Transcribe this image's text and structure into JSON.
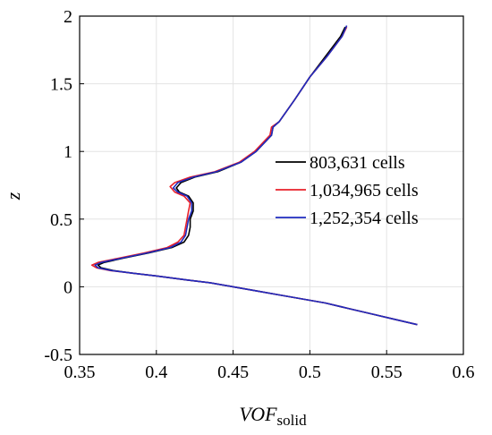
{
  "chart_data": {
    "type": "line",
    "title": "",
    "xlabel_main": "VOF",
    "xlabel_sub": "solid",
    "ylabel": "z",
    "xlim": [
      0.35,
      0.6
    ],
    "ylim": [
      -0.5,
      2
    ],
    "xticks": [
      "0.35",
      "0.4",
      "0.45",
      "0.5",
      "0.55",
      "0.6"
    ],
    "yticks": [
      "-0.5",
      "0",
      "0.5",
      "1",
      "1.5",
      "2"
    ],
    "grid": true,
    "legend_position": "center-right",
    "series": [
      {
        "name": "803,631 cells",
        "color": "#000000",
        "points": [
          [
            0.57,
            -0.28
          ],
          [
            0.555,
            -0.24
          ],
          [
            0.54,
            -0.2
          ],
          [
            0.525,
            -0.16
          ],
          [
            0.51,
            -0.12
          ],
          [
            0.495,
            -0.09
          ],
          [
            0.48,
            -0.06
          ],
          [
            0.465,
            -0.03
          ],
          [
            0.45,
            0.0
          ],
          [
            0.435,
            0.03
          ],
          [
            0.42,
            0.05
          ],
          [
            0.4,
            0.08
          ],
          [
            0.385,
            0.1
          ],
          [
            0.372,
            0.12
          ],
          [
            0.364,
            0.14
          ],
          [
            0.362,
            0.16
          ],
          [
            0.366,
            0.18
          ],
          [
            0.378,
            0.21
          ],
          [
            0.395,
            0.25
          ],
          [
            0.41,
            0.29
          ],
          [
            0.418,
            0.33
          ],
          [
            0.421,
            0.38
          ],
          [
            0.422,
            0.44
          ],
          [
            0.422,
            0.5
          ],
          [
            0.424,
            0.56
          ],
          [
            0.424,
            0.62
          ],
          [
            0.421,
            0.67
          ],
          [
            0.415,
            0.7
          ],
          [
            0.413,
            0.73
          ],
          [
            0.416,
            0.77
          ],
          [
            0.425,
            0.81
          ],
          [
            0.44,
            0.85
          ],
          [
            0.455,
            0.92
          ],
          [
            0.465,
            1.0
          ],
          [
            0.475,
            1.12
          ],
          [
            0.476,
            1.18
          ],
          [
            0.48,
            1.22
          ],
          [
            0.49,
            1.38
          ],
          [
            0.5,
            1.55
          ],
          [
            0.51,
            1.7
          ],
          [
            0.52,
            1.85
          ],
          [
            0.523,
            1.92
          ]
        ]
      },
      {
        "name": "1,034,965 cells",
        "color": "#e8202a",
        "points": [
          [
            0.57,
            -0.28
          ],
          [
            0.555,
            -0.24
          ],
          [
            0.54,
            -0.2
          ],
          [
            0.525,
            -0.16
          ],
          [
            0.51,
            -0.12
          ],
          [
            0.495,
            -0.09
          ],
          [
            0.48,
            -0.06
          ],
          [
            0.465,
            -0.03
          ],
          [
            0.45,
            0.0
          ],
          [
            0.435,
            0.03
          ],
          [
            0.42,
            0.05
          ],
          [
            0.4,
            0.08
          ],
          [
            0.385,
            0.1
          ],
          [
            0.37,
            0.12
          ],
          [
            0.361,
            0.14
          ],
          [
            0.358,
            0.16
          ],
          [
            0.362,
            0.18
          ],
          [
            0.375,
            0.21
          ],
          [
            0.392,
            0.25
          ],
          [
            0.407,
            0.29
          ],
          [
            0.414,
            0.33
          ],
          [
            0.418,
            0.38
          ],
          [
            0.419,
            0.44
          ],
          [
            0.42,
            0.5
          ],
          [
            0.421,
            0.56
          ],
          [
            0.422,
            0.62
          ],
          [
            0.418,
            0.67
          ],
          [
            0.412,
            0.7
          ],
          [
            0.409,
            0.74
          ],
          [
            0.412,
            0.77
          ],
          [
            0.422,
            0.81
          ],
          [
            0.438,
            0.85
          ],
          [
            0.454,
            0.92
          ],
          [
            0.464,
            1.0
          ],
          [
            0.474,
            1.12
          ],
          [
            0.475,
            1.18
          ],
          [
            0.48,
            1.22
          ],
          [
            0.49,
            1.38
          ],
          [
            0.5,
            1.55
          ],
          [
            0.511,
            1.7
          ],
          [
            0.521,
            1.85
          ],
          [
            0.524,
            1.92
          ]
        ]
      },
      {
        "name": "1,252,354 cells",
        "color": "#1f2bbf",
        "points": [
          [
            0.57,
            -0.28
          ],
          [
            0.555,
            -0.24
          ],
          [
            0.54,
            -0.2
          ],
          [
            0.525,
            -0.16
          ],
          [
            0.51,
            -0.12
          ],
          [
            0.495,
            -0.09
          ],
          [
            0.48,
            -0.06
          ],
          [
            0.465,
            -0.03
          ],
          [
            0.45,
            0.0
          ],
          [
            0.435,
            0.03
          ],
          [
            0.42,
            0.05
          ],
          [
            0.4,
            0.08
          ],
          [
            0.385,
            0.1
          ],
          [
            0.371,
            0.12
          ],
          [
            0.362,
            0.14
          ],
          [
            0.36,
            0.16
          ],
          [
            0.364,
            0.18
          ],
          [
            0.377,
            0.21
          ],
          [
            0.394,
            0.25
          ],
          [
            0.409,
            0.29
          ],
          [
            0.416,
            0.33
          ],
          [
            0.419,
            0.38
          ],
          [
            0.42,
            0.44
          ],
          [
            0.421,
            0.5
          ],
          [
            0.423,
            0.56
          ],
          [
            0.423,
            0.62
          ],
          [
            0.42,
            0.67
          ],
          [
            0.414,
            0.7
          ],
          [
            0.411,
            0.73
          ],
          [
            0.414,
            0.77
          ],
          [
            0.424,
            0.81
          ],
          [
            0.439,
            0.85
          ],
          [
            0.455,
            0.92
          ],
          [
            0.465,
            1.0
          ],
          [
            0.475,
            1.12
          ],
          [
            0.476,
            1.18
          ],
          [
            0.48,
            1.22
          ],
          [
            0.49,
            1.38
          ],
          [
            0.5,
            1.55
          ],
          [
            0.511,
            1.7
          ],
          [
            0.521,
            1.85
          ],
          [
            0.524,
            1.93
          ]
        ]
      }
    ]
  }
}
